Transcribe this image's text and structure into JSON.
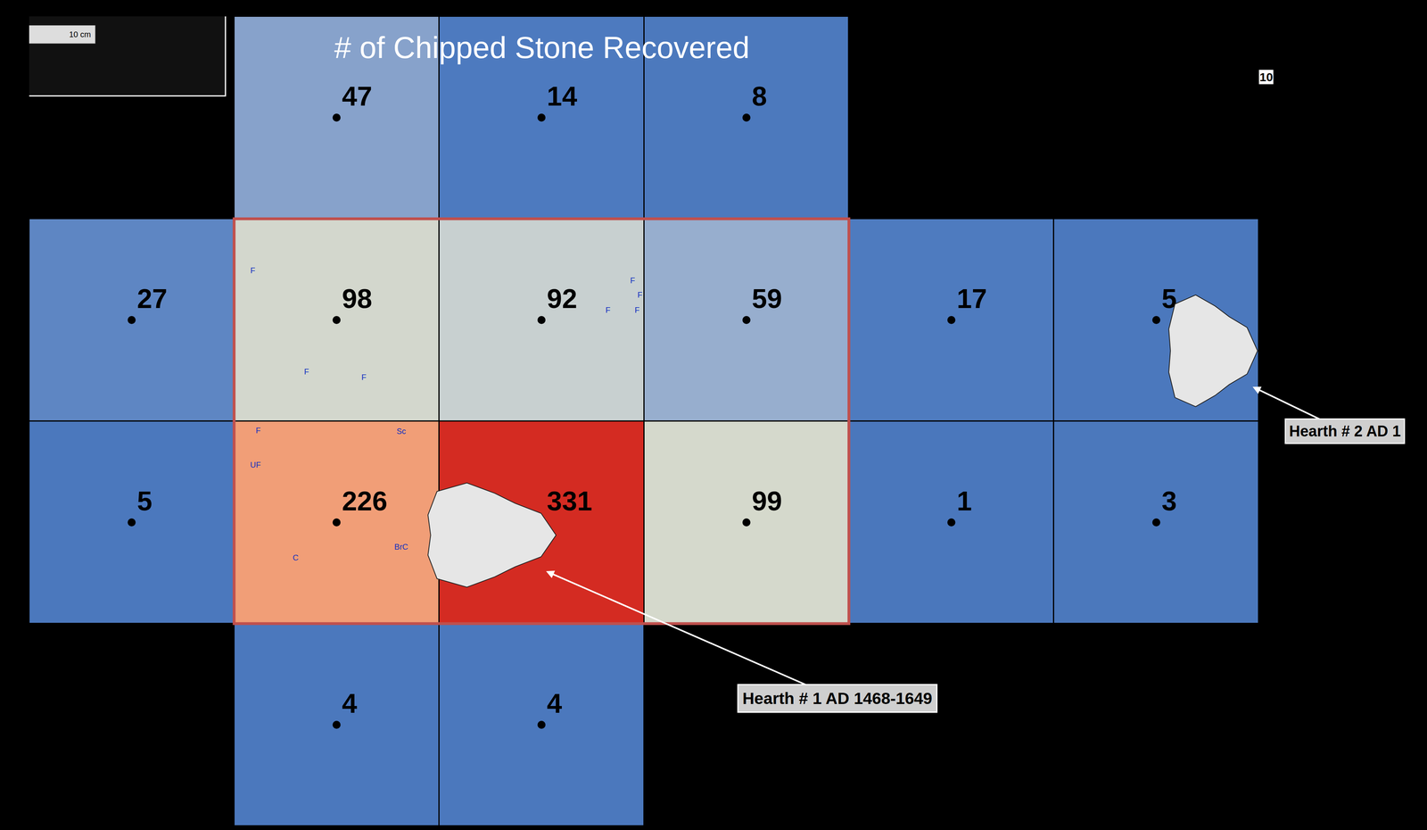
{
  "chart_data": {
    "type": "heatmap",
    "title": "# of Chipped Stone Recovered",
    "values": [
      [
        null,
        47,
        14,
        8,
        null,
        null
      ],
      [
        27,
        98,
        92,
        59,
        17,
        5
      ],
      [
        5,
        226,
        331,
        99,
        1,
        3
      ],
      [
        null,
        4,
        4,
        null,
        null,
        null
      ]
    ],
    "data_labels": true,
    "tick_labels": false,
    "annotations": [
      "Hearth # 1 AD 1468-1649",
      "Hearth # 2 AD 1"
    ],
    "scale_labels": [
      "10 cm",
      "10",
      "cm"
    ],
    "feature_labels": [
      "F",
      "F",
      "F",
      "F",
      "F",
      "F",
      "F",
      "F",
      "Sc",
      "UF",
      "C",
      "BrC"
    ]
  }
}
